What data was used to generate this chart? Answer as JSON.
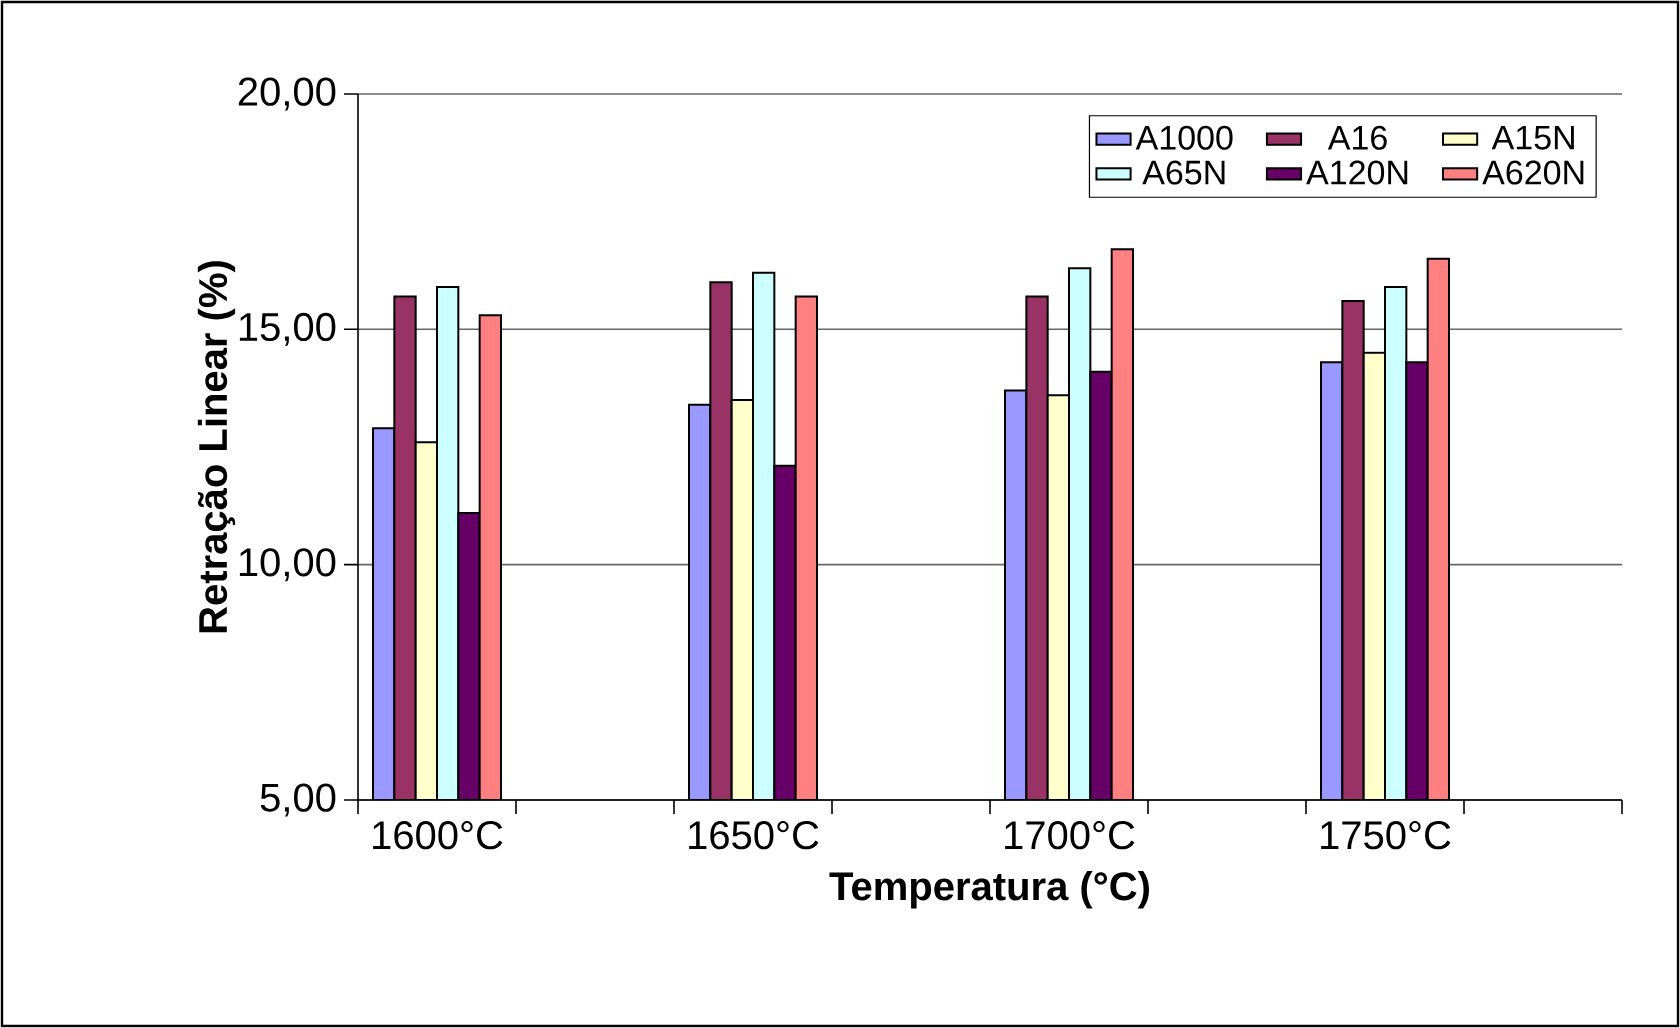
{
  "chart_data": {
    "type": "bar",
    "xlabel": "Temperatura (°C)",
    "ylabel": "Retração Linear (%)",
    "categories": [
      "1600°C",
      null,
      "1650°C",
      null,
      "1700°C",
      null,
      "1750°C",
      null
    ],
    "series": [
      {
        "name": "A1000",
        "color": "#9999ff",
        "values": [
          12.9,
          null,
          13.4,
          null,
          13.7,
          null,
          14.3,
          null
        ]
      },
      {
        "name": "A16",
        "color": "#993366",
        "values": [
          15.7,
          null,
          16.0,
          null,
          15.7,
          null,
          15.6,
          null
        ]
      },
      {
        "name": "A15N",
        "color": "#ffffcc",
        "values": [
          12.6,
          null,
          13.5,
          null,
          13.6,
          null,
          14.5,
          null
        ]
      },
      {
        "name": "A65N",
        "color": "#ccffff",
        "values": [
          15.9,
          null,
          16.2,
          null,
          16.3,
          null,
          15.9,
          null
        ]
      },
      {
        "name": "A120N",
        "color": "#660066",
        "values": [
          11.1,
          null,
          12.1,
          null,
          14.1,
          null,
          14.3,
          null
        ]
      },
      {
        "name": "A620N",
        "color": "#ff8080",
        "values": [
          15.3,
          null,
          15.7,
          null,
          16.7,
          null,
          16.5,
          null
        ]
      }
    ],
    "ylim": [
      5,
      20
    ],
    "yticks": [
      {
        "value": 5,
        "label": "5,00"
      },
      {
        "value": 10,
        "label": "10,00"
      },
      {
        "value": 15,
        "label": "15,00"
      },
      {
        "value": 20,
        "label": "20,00"
      }
    ],
    "grid": "y",
    "legend": "top right"
  }
}
